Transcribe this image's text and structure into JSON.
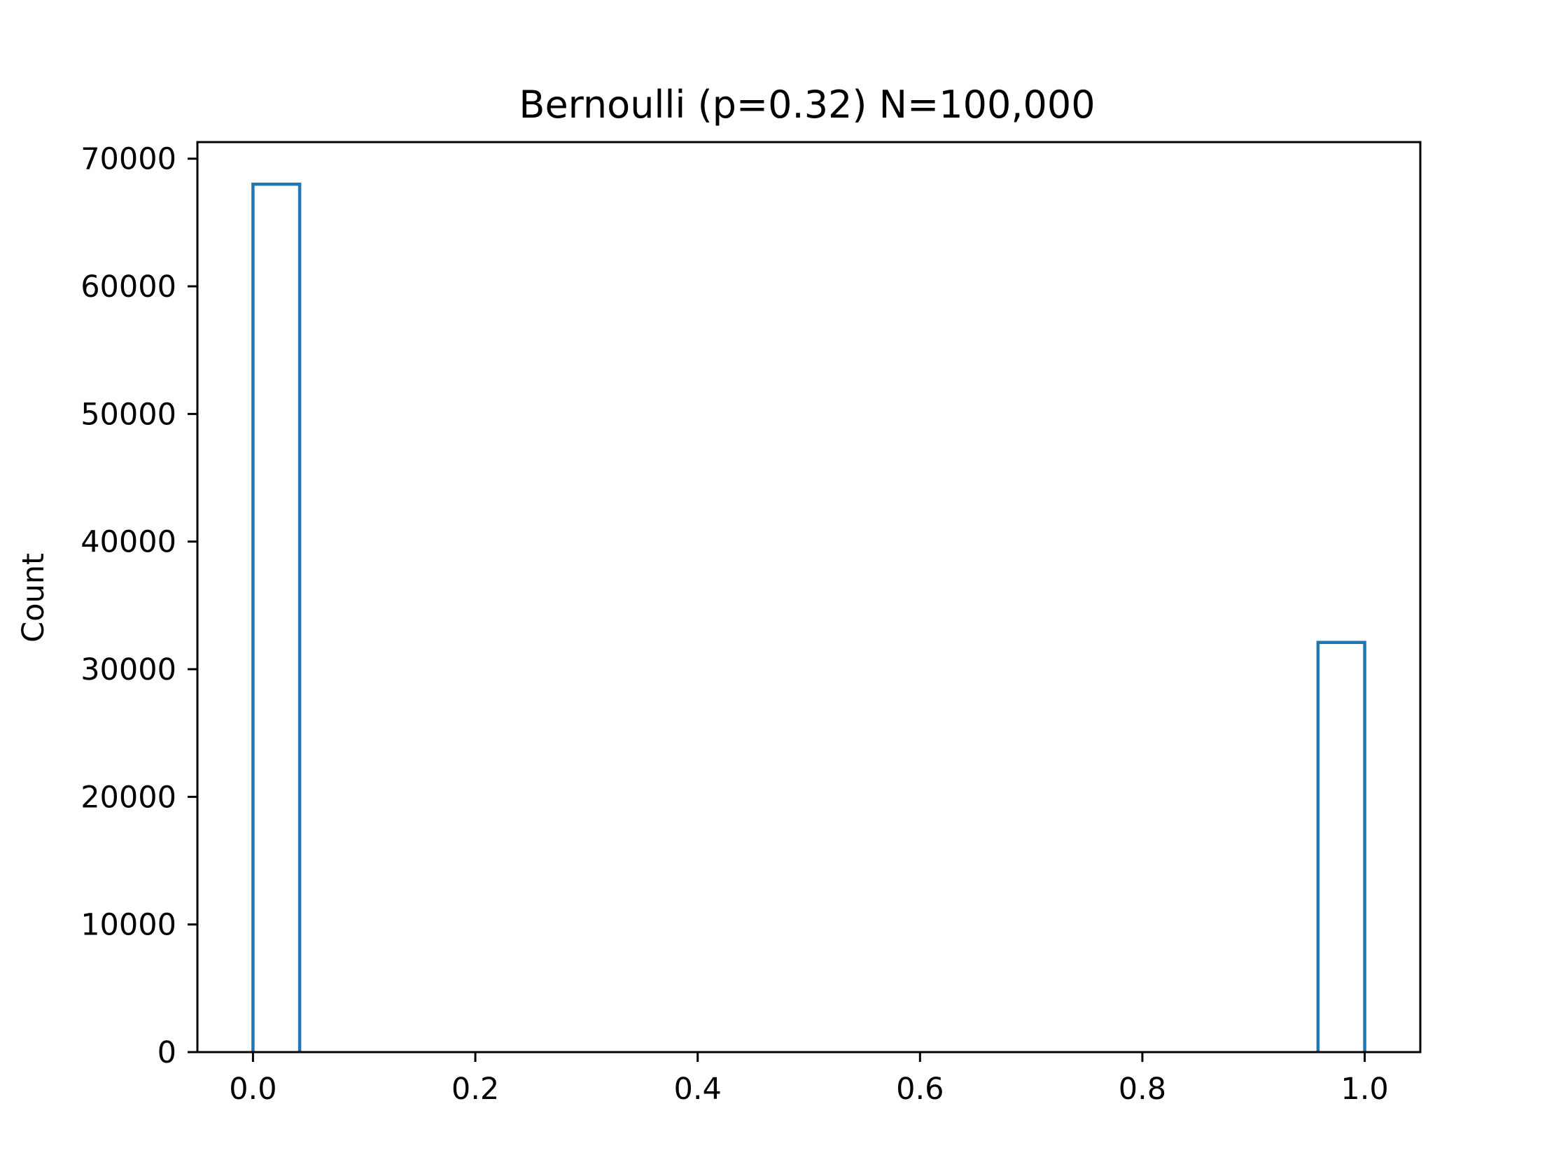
{
  "chart_data": {
    "type": "bar",
    "title": "Bernoulli (p=0.32) N=100,000",
    "xlabel": "",
    "ylabel": "Count",
    "bar_style": "outline",
    "color": "#1f77b4",
    "xlim": [
      -0.05,
      1.05
    ],
    "ylim": [
      0,
      71300
    ],
    "x_ticks": [
      {
        "value": 0.0,
        "label": "0.0"
      },
      {
        "value": 0.2,
        "label": "0.2"
      },
      {
        "value": 0.4,
        "label": "0.4"
      },
      {
        "value": 0.6,
        "label": "0.6"
      },
      {
        "value": 0.8,
        "label": "0.8"
      },
      {
        "value": 1.0,
        "label": "1.0"
      }
    ],
    "y_ticks": [
      {
        "value": 0,
        "label": "0"
      },
      {
        "value": 10000,
        "label": "10000"
      },
      {
        "value": 20000,
        "label": "20000"
      },
      {
        "value": 30000,
        "label": "30000"
      },
      {
        "value": 40000,
        "label": "40000"
      },
      {
        "value": 50000,
        "label": "50000"
      },
      {
        "value": 60000,
        "label": "60000"
      },
      {
        "value": 70000,
        "label": "70000"
      }
    ],
    "bars": [
      {
        "x0": 0.0,
        "x1": 0.042,
        "value": 68000
      },
      {
        "x0": 0.958,
        "x1": 1.0,
        "value": 32100
      }
    ],
    "grid": false,
    "legend": "none"
  }
}
